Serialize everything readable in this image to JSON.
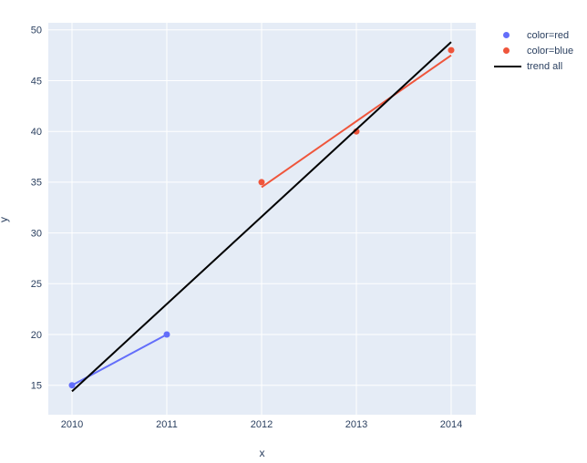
{
  "figure": {
    "background": "#ffffff",
    "plot_background": "#e5ecf6",
    "grid_color": "#ffffff",
    "text_color": "#2a3f5f"
  },
  "chart_data": {
    "type": "scatter",
    "title": "",
    "xlabel": "x",
    "ylabel": "y",
    "x_ticks": [
      2010,
      2011,
      2012,
      2013,
      2014
    ],
    "y_ticks": [
      15,
      20,
      25,
      30,
      35,
      40,
      45,
      50
    ],
    "x_range": [
      2009.75,
      2014.26
    ],
    "y_range": [
      12.1,
      50.7
    ],
    "grid": true,
    "legend_position": "top-right",
    "series": [
      {
        "name": "color=red",
        "type": "scatter+trend",
        "color": "#636efa",
        "points": [
          [
            2010,
            15
          ],
          [
            2011,
            20
          ]
        ],
        "trend": [
          [
            2010,
            15
          ],
          [
            2011,
            20
          ]
        ]
      },
      {
        "name": "color=blue",
        "type": "scatter+trend",
        "color": "#ef553b",
        "points": [
          [
            2012,
            35
          ],
          [
            2013,
            40
          ],
          [
            2014,
            48
          ]
        ],
        "trend": [
          [
            2012,
            34.5
          ],
          [
            2014,
            47.5
          ]
        ]
      },
      {
        "name": "trend all",
        "type": "line",
        "color": "#000000",
        "points": [],
        "trend": [
          [
            2010,
            14.4
          ],
          [
            2014,
            48.8
          ]
        ]
      }
    ],
    "legend": [
      {
        "label": "color=red",
        "marker": "dot",
        "color": "#636efa"
      },
      {
        "label": "color=blue",
        "marker": "dot",
        "color": "#ef553b"
      },
      {
        "label": "trend all",
        "marker": "line",
        "color": "#000000"
      }
    ]
  }
}
